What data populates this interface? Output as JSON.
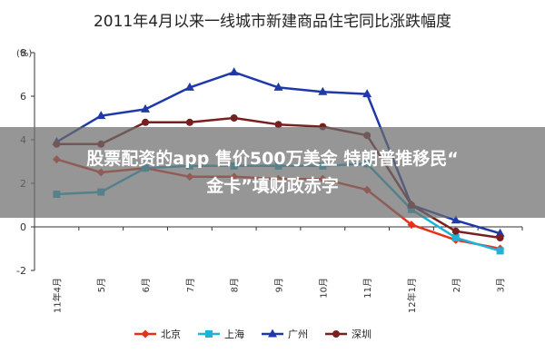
{
  "chart_data": {
    "type": "line",
    "title": "2011年4月以来一线城市新建商品住宅同比涨跌幅度",
    "ylabel": "(%)",
    "ylim": [
      -2,
      8
    ],
    "yticks": [
      -2,
      0,
      2,
      4,
      6,
      8
    ],
    "categories": [
      "11年4月",
      "5月",
      "6月",
      "7月",
      "8月",
      "9月",
      "10月",
      "11月",
      "12年1月",
      "2月",
      "3月"
    ],
    "x_tick_labels": [
      "11年4月",
      "5月",
      "6月",
      "7月",
      "8月",
      "9月",
      "10月",
      "11月",
      "12年1月",
      "2月",
      "3月"
    ],
    "grid": false,
    "legend_position": "bottom",
    "series": [
      {
        "name": "北京",
        "color": "#e8301c",
        "marker": "diamond",
        "values": [
          3.1,
          2.5,
          2.7,
          2.3,
          2.3,
          2.2,
          2.2,
          1.7,
          0.1,
          -0.6,
          -1.0
        ]
      },
      {
        "name": "上海",
        "color": "#1bb3d6",
        "marker": "square",
        "values": [
          1.5,
          1.6,
          2.7,
          2.8,
          2.8,
          2.8,
          2.8,
          2.9,
          0.8,
          -0.5,
          -1.1
        ]
      },
      {
        "name": "广州",
        "color": "#1f3aa8",
        "marker": "triangle",
        "values": [
          3.9,
          5.1,
          5.4,
          6.4,
          7.1,
          6.4,
          6.2,
          6.1,
          1.0,
          0.3,
          -0.3
        ]
      },
      {
        "name": "深圳",
        "color": "#7a1f1f",
        "marker": "circle",
        "values": [
          3.8,
          3.8,
          4.8,
          4.8,
          5.0,
          4.7,
          4.6,
          4.2,
          1.0,
          -0.2,
          -0.5
        ]
      }
    ]
  },
  "overlay": {
    "line1": "股票配资的app 售价500万美金 特朗普推移民“",
    "line2": "金卡”填财政赤字"
  }
}
